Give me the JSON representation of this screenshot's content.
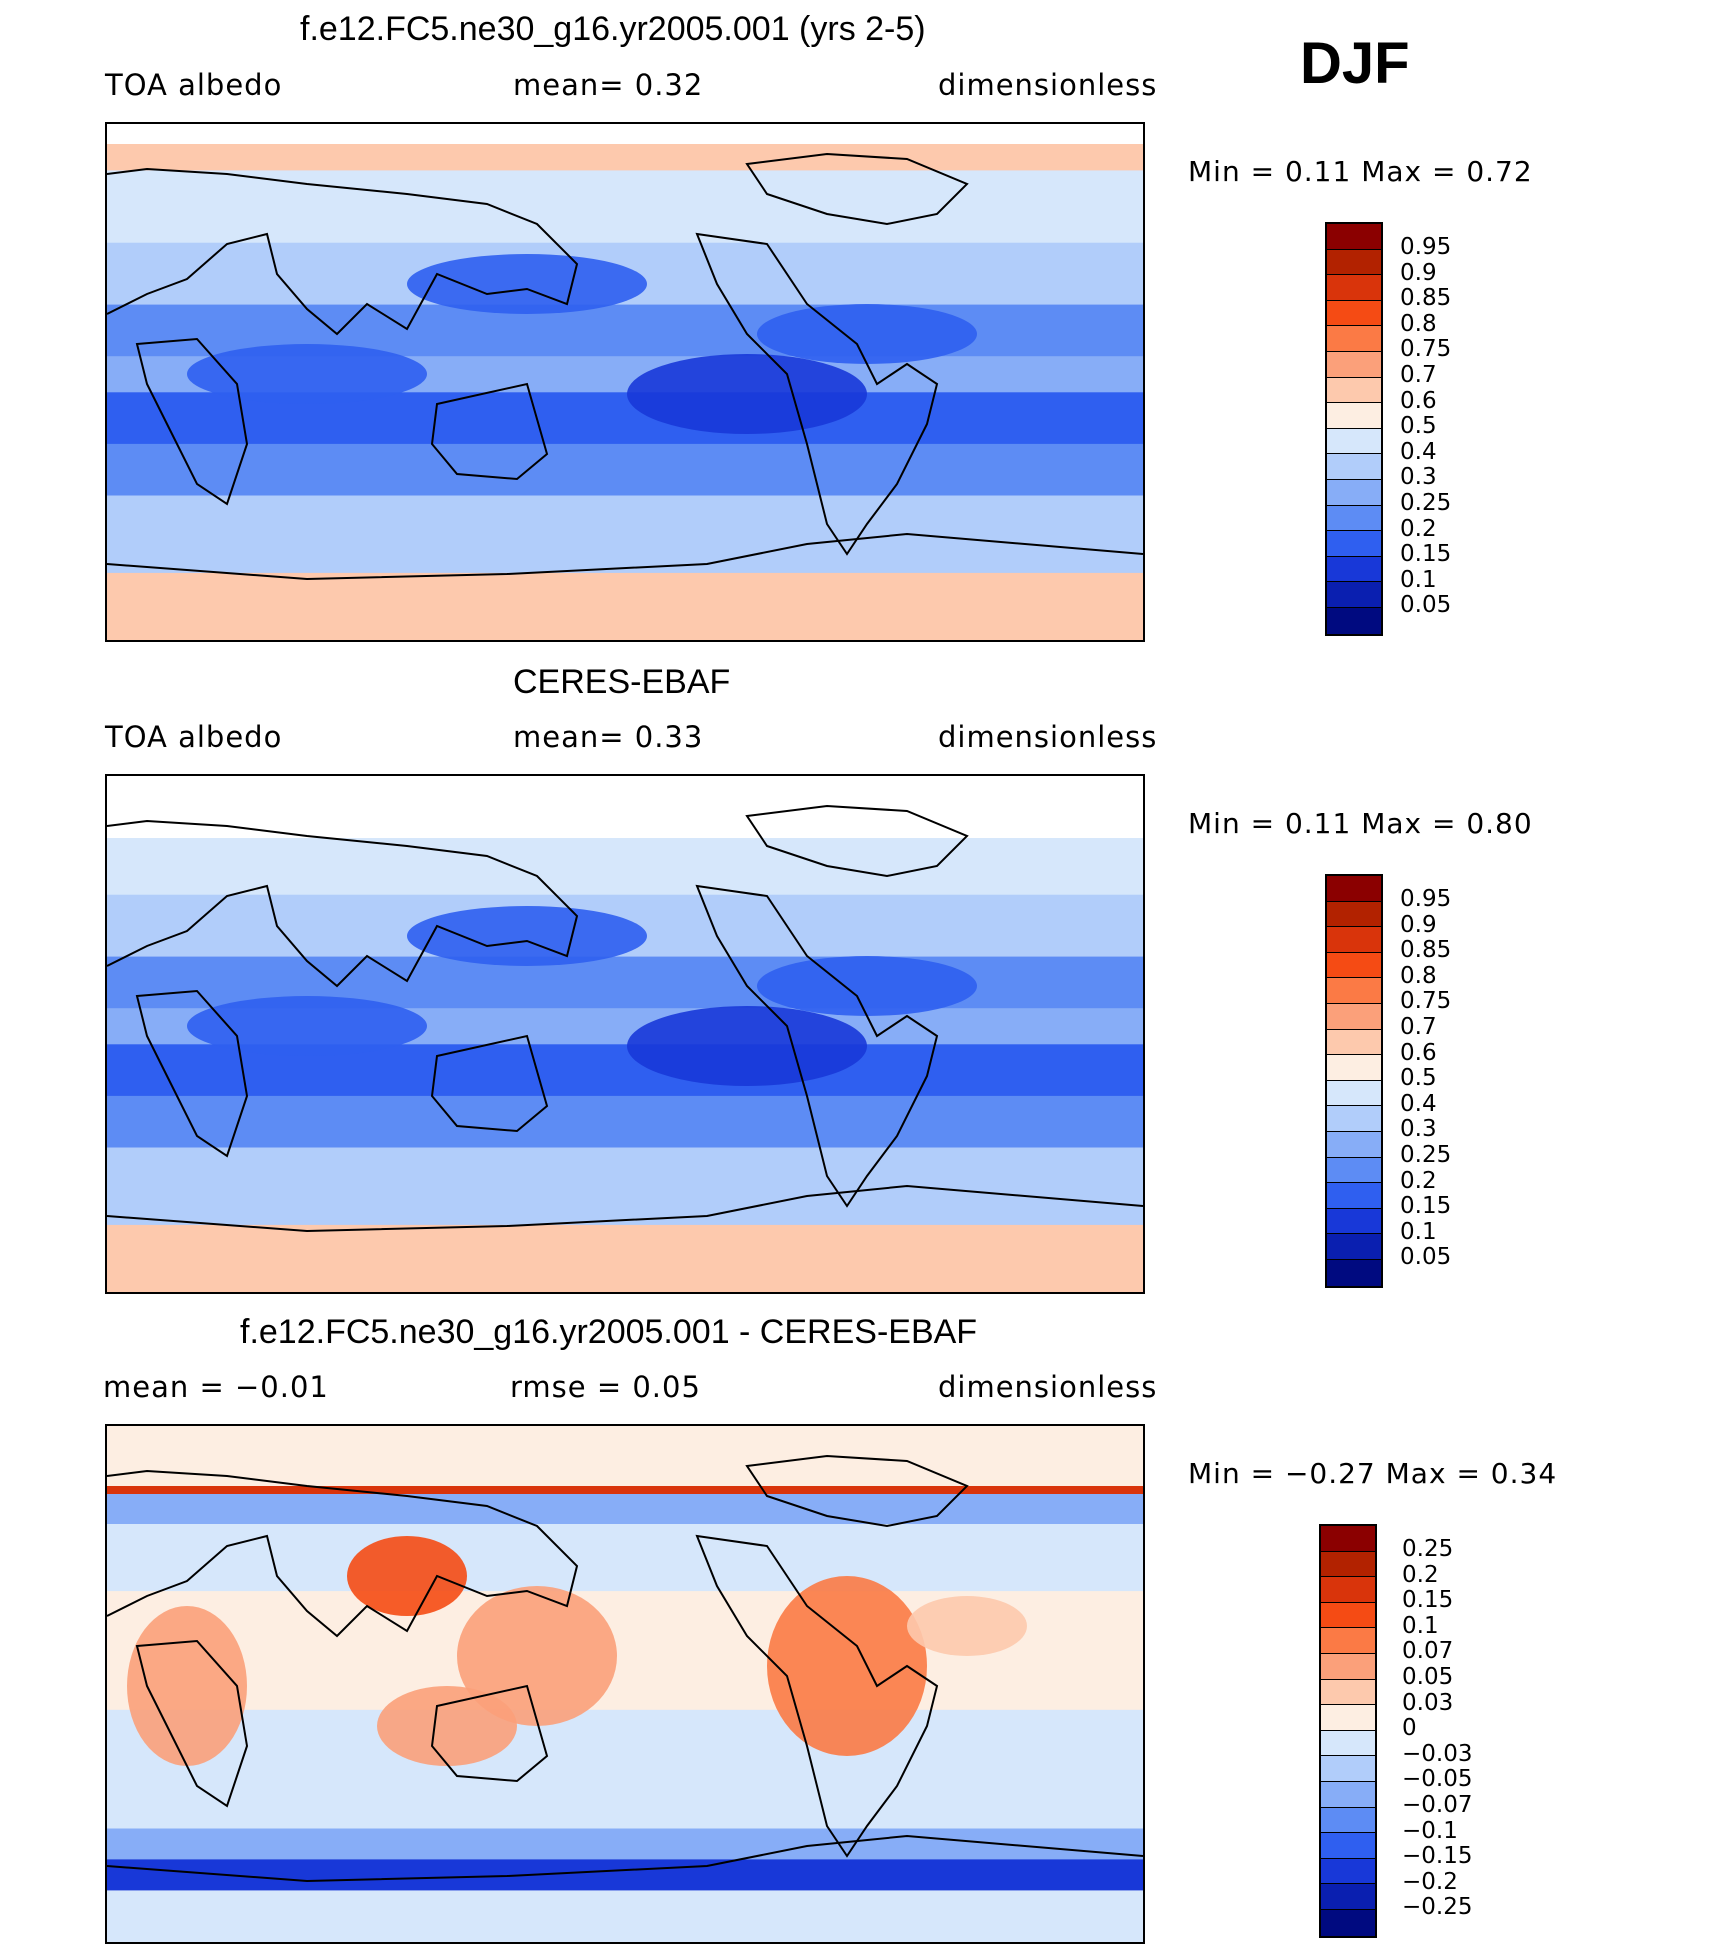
{
  "season": "DJF",
  "panels": [
    {
      "id": "model",
      "title": "f.e12.FC5.ne30_g16.yr2005.001 (yrs 2-5)",
      "left_label": "TOA  albedo",
      "center_label": "mean=     0.32",
      "right_label": "dimensionless",
      "min_max": "Min  =      0.11  Max  =      0.72",
      "colorbar_labels": [
        "0.95",
        "0.9",
        "0.85",
        "0.8",
        "0.75",
        "0.7",
        "0.6",
        "0.5",
        "0.4",
        "0.3",
        "0.25",
        "0.2",
        "0.15",
        "0.1",
        "0.05"
      ],
      "colorbar_colors": [
        "#8b0000",
        "#b22200",
        "#d9340b",
        "#f54b14",
        "#fb7a45",
        "#fba07a",
        "#fdc9ad",
        "#fdeee2",
        "#d6e7fb",
        "#b1cdfa",
        "#87adf7",
        "#5d8cf4",
        "#2f5ff0",
        "#1838d8",
        "#0a1fb0",
        "#000a80"
      ],
      "field": "model"
    },
    {
      "id": "obs",
      "title": "CERES-EBAF",
      "left_label": "TOA  albedo",
      "center_label": "mean=     0.33",
      "right_label": "dimensionless",
      "min_max": "Min  =      0.11  Max  =      0.80",
      "colorbar_labels": [
        "0.95",
        "0.9",
        "0.85",
        "0.8",
        "0.75",
        "0.7",
        "0.6",
        "0.5",
        "0.4",
        "0.3",
        "0.25",
        "0.2",
        "0.15",
        "0.1",
        "0.05"
      ],
      "colorbar_colors": [
        "#8b0000",
        "#b22200",
        "#d9340b",
        "#f54b14",
        "#fb7a45",
        "#fba07a",
        "#fdc9ad",
        "#fdeee2",
        "#d6e7fb",
        "#b1cdfa",
        "#87adf7",
        "#5d8cf4",
        "#2f5ff0",
        "#1838d8",
        "#0a1fb0",
        "#000a80"
      ],
      "field": "obs"
    },
    {
      "id": "diff",
      "title": "f.e12.FC5.ne30_g16.yr2005.001 - CERES-EBAF",
      "left_label": "mean  =    −0.01",
      "center_label": "rmse  =     0.05",
      "right_label": "dimensionless",
      "min_max": "Min  =    −0.27  Max  =      0.34",
      "colorbar_labels": [
        "0.25",
        "0.2",
        "0.15",
        "0.1",
        "0.07",
        "0.05",
        "0.03",
        "0",
        "−0.03",
        "−0.05",
        "−0.07",
        "−0.1",
        "−0.15",
        "−0.2",
        "−0.25"
      ],
      "colorbar_colors": [
        "#8b0000",
        "#b22200",
        "#d9340b",
        "#f54b14",
        "#fb7a45",
        "#fba07a",
        "#fdc9ad",
        "#fdeee2",
        "#d6e7fb",
        "#b1cdfa",
        "#87adf7",
        "#5d8cf4",
        "#2f5ff0",
        "#1838d8",
        "#0a1fb0",
        "#000a80"
      ],
      "field": "diff"
    }
  ]
}
